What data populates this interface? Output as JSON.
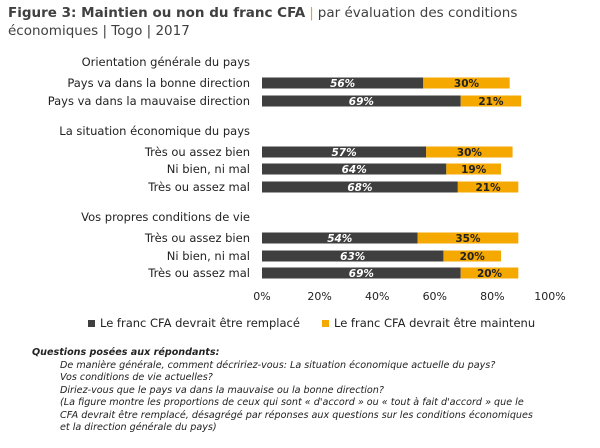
{
  "header": {
    "title_bold": "Figure 3: Maintien ou non du franc CFA",
    "separator": "|",
    "title_rest": "par évaluation des conditions économiques | Togo | 2017"
  },
  "colors": {
    "series_a": "#3f3f3f",
    "series_b": "#f5a800"
  },
  "chart_data": {
    "type": "bar",
    "orientation": "horizontal",
    "stacked": true,
    "xlim": [
      0,
      100
    ],
    "xticks": [
      "0%",
      "20%",
      "40%",
      "60%",
      "80%",
      "100%"
    ],
    "groups": [
      {
        "heading": "Orientation générale du pays",
        "categories": [
          "Pays va dans la bonne direction",
          "Pays va dans la mauvaise direction"
        ]
      },
      {
        "heading": "La situation économique du pays",
        "categories": [
          "Très ou assez bien",
          "Ni bien, ni mal",
          "Très ou assez mal"
        ]
      },
      {
        "heading": "Vos propres conditions de vie",
        "categories": [
          "Très ou assez bien",
          "Ni bien, ni mal",
          "Très ou assez mal"
        ]
      }
    ],
    "series": [
      {
        "name": "Le franc CFA devrait être remplacé",
        "values": [
          56,
          69,
          57,
          64,
          68,
          54,
          63,
          69
        ]
      },
      {
        "name": "Le franc CFA devrait être maintenu",
        "values": [
          30,
          21,
          30,
          19,
          21,
          35,
          20,
          20
        ]
      }
    ],
    "data_labels": [
      [
        "56%",
        "69%",
        "57%",
        "64%",
        "68%",
        "54%",
        "63%",
        "69%"
      ],
      [
        "30%",
        "21%",
        "30%",
        "19%",
        "21%",
        "35%",
        "20%",
        "20%"
      ]
    ]
  },
  "notes": {
    "heading": "Questions posées aux répondants:",
    "lines": [
      "De manière générale, comment décririez-vous: La situation économique actuelle du pays?",
      "Vos conditions de vie actuelles?",
      "Diriez-vous que le pays va dans la mauvaise ou la bonne direction?",
      "(La figure montre les proportions de ceux qui sont « d'accord » ou « tout à fait d'accord » que le",
      "CFA devrait être remplacé, désagrégé par réponses aux questions sur les conditions économiques",
      "et la direction générale du pays)"
    ]
  }
}
